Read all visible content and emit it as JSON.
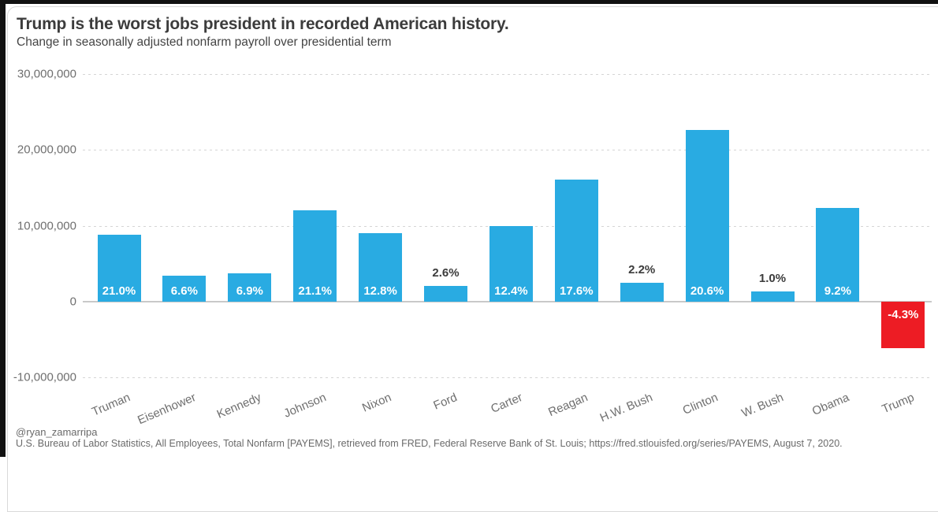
{
  "chart_data": {
    "type": "bar",
    "title": "Trump is the worst jobs president in recorded American history.",
    "subtitle": "Change in seasonally adjusted nonfarm payroll over presidential term",
    "categories": [
      "Truman",
      "Eisenhower",
      "Kennedy",
      "Johnson",
      "Nixon",
      "Ford",
      "Carter",
      "Reagan",
      "H.W. Bush",
      "Clinton",
      "W. Bush",
      "Obama",
      "Trump"
    ],
    "values": [
      8800000,
      3400000,
      3700000,
      12000000,
      9000000,
      2100000,
      10000000,
      16100000,
      2500000,
      22600000,
      1300000,
      12300000,
      -6200000
    ],
    "percent_labels": [
      "21.0%",
      "6.6%",
      "6.9%",
      "21.1%",
      "12.8%",
      "2.6%",
      "12.4%",
      "17.6%",
      "2.2%",
      "20.6%",
      "1.0%",
      "9.2%",
      "-4.3%"
    ],
    "xlabel": "",
    "ylabel": "",
    "ylim": [
      -10000000,
      30000000
    ],
    "y_ticks": [
      30000000,
      20000000,
      10000000,
      0,
      -10000000
    ],
    "y_tick_labels": [
      "30,000,000",
      "20,000,000",
      "10,000,000",
      "0",
      "-10,000,000"
    ],
    "grid": "horizontal-dashed",
    "legend": "none"
  },
  "colors": {
    "bar_positive": "#29ABE2",
    "bar_negative": "#ED1C24",
    "label_inside": "#FFFFFF",
    "label_outside": "#3C3C3C",
    "grid": "#d5d5d5",
    "axis_text": "#6f6f6f"
  },
  "footer": {
    "handle": "@ryan_zamarripa",
    "source": "U.S. Bureau of Labor Statistics, All Employees, Total Nonfarm [PAYEMS], retrieved from FRED, Federal Reserve Bank of St. Louis; https://fred.stlouisfed.org/series/PAYEMS, August 7, 2020."
  }
}
